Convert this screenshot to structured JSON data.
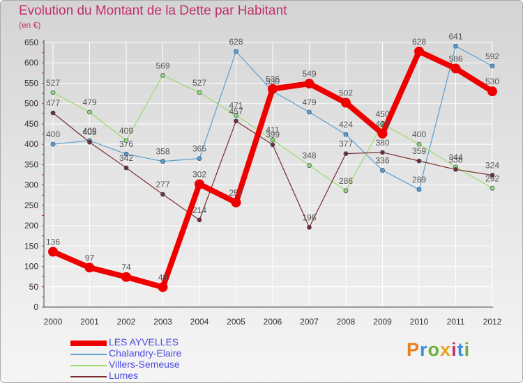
{
  "header": {
    "title": "Evolution du Montant de la Dette par Habitant",
    "subtitle": "(en €)"
  },
  "logo": {
    "text": "Proxiti",
    "letters": [
      "P",
      "r",
      "o",
      "x",
      "i",
      "t",
      "i"
    ],
    "colors": [
      "#e87f1e",
      "#3c8fd6",
      "#6bb03c",
      "#e8a21e",
      "#c0306a",
      "#3c8fd6",
      "#6bb03c"
    ]
  },
  "chart_data": {
    "type": "line",
    "title": "Evolution du Montant de la Dette par Habitant",
    "subtitle": "(en €)",
    "xlabel": "",
    "ylabel": "",
    "categories": [
      "2000",
      "2001",
      "2002",
      "2003",
      "2004",
      "2005",
      "2006",
      "2007",
      "2008",
      "2009",
      "2010",
      "2011",
      "2012"
    ],
    "ylim": [
      0,
      650
    ],
    "yticks": [
      0,
      50,
      100,
      150,
      200,
      250,
      300,
      350,
      400,
      450,
      500,
      550,
      600,
      650
    ],
    "grid": true,
    "legend": "bottom-left",
    "series": [
      {
        "name": "Chalandry-Elaire",
        "color": "#5a9fd0",
        "width": 1.2,
        "marker": 3,
        "values": [
          400,
          409,
          376,
          358,
          365,
          628,
          530,
          479,
          424,
          336,
          289,
          641,
          592
        ]
      },
      {
        "name": "Villers-Semeuse",
        "color": "#99dd66",
        "width": 1.2,
        "marker": 3,
        "values": [
          527,
          479,
          409,
          569,
          527,
          471,
          411,
          348,
          286,
          450,
          400,
          344,
          292
        ]
      },
      {
        "name": "Lumes",
        "color": "#7a2a2a",
        "width": 1.2,
        "marker": 3,
        "values": [
          477,
          405,
          342,
          277,
          214,
          457,
          399,
          196,
          377,
          380,
          359,
          338,
          324
        ]
      },
      {
        "name": "LES AYVELLES",
        "color": "#ee0000",
        "width": 8,
        "marker": 7,
        "values": [
          136,
          97,
          74,
          49,
          302,
          257,
          536,
          549,
          502,
          426,
          628,
          586,
          530
        ]
      }
    ],
    "legend_order": [
      "LES AYVELLES",
      "Chalandry-Elaire",
      "Villers-Semeuse",
      "Lumes"
    ]
  }
}
